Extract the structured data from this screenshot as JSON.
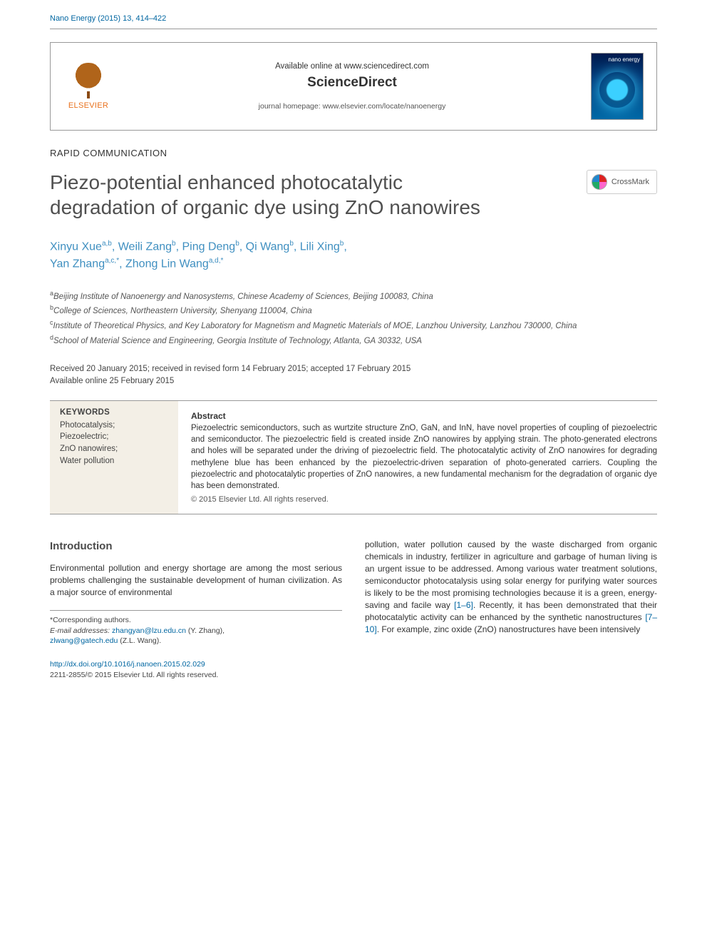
{
  "journal_ref": "Nano Energy (2015) 13, 414–422",
  "header": {
    "available": "Available online at www.sciencedirect.com",
    "sciencedirect": "ScienceDirect",
    "homepage": "journal homepage: www.elsevier.com/locate/nanoenergy",
    "publisher": "ELSEVIER",
    "journal_cover_title": "nano energy"
  },
  "article_type": "RAPID COMMUNICATION",
  "title": "Piezo-potential enhanced photocatalytic degradation of organic dye using ZnO nanowires",
  "crossmark": "CrossMark",
  "authors": {
    "line1": "Xinyu Xue",
    "sup1": "a,b",
    "a2": ", Weili Zang",
    "sup2": "b",
    "a3": ", Ping Deng",
    "sup3": "b",
    "a4": ", Qi Wang",
    "sup4": "b",
    "a5": ", Lili Xing",
    "sup5": "b",
    "a6": "Yan Zhang",
    "sup6": "a,c,*",
    "a7": ", Zhong Lin Wang",
    "sup7": "a,d,*"
  },
  "affiliations": {
    "a": "Beijing Institute of Nanoenergy and Nanosystems, Chinese Academy of Sciences, Beijing 100083, China",
    "b": "College of Sciences, Northeastern University, Shenyang 110004, China",
    "c": "Institute of Theoretical Physics, and Key Laboratory for Magnetism and Magnetic Materials of MOE, Lanzhou University, Lanzhou 730000, China",
    "d": "School of Material Science and Engineering, Georgia Institute of Technology, Atlanta, GA 30332, USA"
  },
  "dates": {
    "received": "Received 20 January 2015; received in revised form 14 February 2015; accepted 17 February 2015",
    "online": "Available online 25 February 2015"
  },
  "keywords": {
    "heading": "KEYWORDS",
    "k1": "Photocatalysis;",
    "k2": "Piezoelectric;",
    "k3": "ZnO nanowires;",
    "k4": "Water pollution"
  },
  "abstract": {
    "heading": "Abstract",
    "body": "Piezoelectric semiconductors, such as wurtzite structure ZnO, GaN, and InN, have novel properties of coupling of piezoelectric and semiconductor. The piezoelectric field is created inside ZnO nanowires by applying strain. The photo-generated electrons and holes will be separated under the driving of piezoelectric field. The photocatalytic activity of ZnO nanowires for degrading methylene blue has been enhanced by the piezoelectric-driven separation of photo-generated carriers. Coupling the piezoelectric and photocatalytic properties of ZnO nanowires, a new fundamental mechanism for the degradation of organic dye has been demonstrated.",
    "copyright": "© 2015 Elsevier Ltd. All rights reserved."
  },
  "intro": {
    "heading": "Introduction",
    "col1": "Environmental pollution and energy shortage are among the most serious problems challenging the sustainable development of human civilization. As a major source of environmental",
    "col2a": "pollution, water pollution caused by the waste discharged from organic chemicals in industry, fertilizer in agriculture and garbage of human living is an urgent issue to be addressed. Among various water treatment solutions, semiconductor photocatalysis using solar energy for purifying water sources is likely to be the most promising technologies because it is a green, energy-saving and facile way ",
    "ref1": "[1–6]",
    "col2b": ". Recently, it has been demonstrated that their photocatalytic activity can be enhanced by the synthetic nanostructures ",
    "ref2": "[7–10]",
    "col2c": ". For example, zinc oxide (ZnO) nanostructures have been intensively"
  },
  "footnotes": {
    "corr": "*Corresponding authors.",
    "email_label": "E-mail addresses: ",
    "email1": "zhangyan@lzu.edu.cn",
    "email1_name": " (Y. Zhang),",
    "email2": "zlwang@gatech.edu",
    "email2_name": " (Z.L. Wang)."
  },
  "doi": {
    "url": "http://dx.doi.org/10.1016/j.nanoen.2015.02.029",
    "issn": "2211-2855/© 2015 Elsevier Ltd. All rights reserved."
  },
  "colors": {
    "link": "#0066a1",
    "author": "#3f8fc0",
    "elsevier_orange": "#e9711c",
    "kw_bg": "#f3efe6"
  }
}
